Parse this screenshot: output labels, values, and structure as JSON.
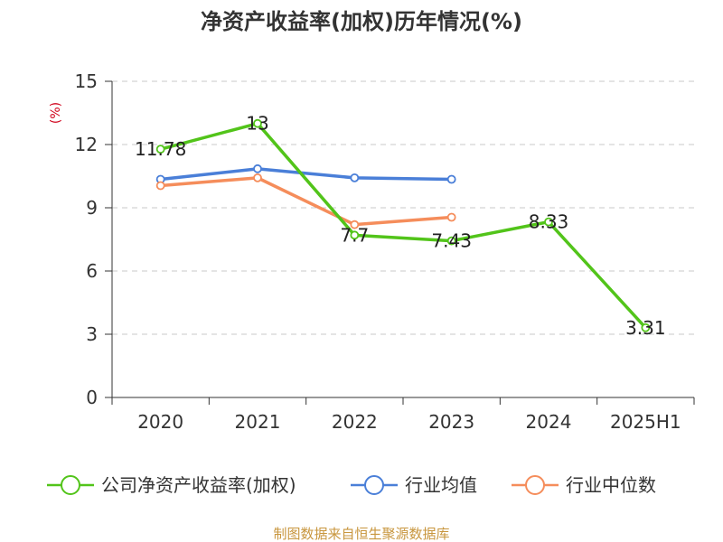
{
  "chart_data": {
    "type": "line",
    "title": "净资产收益率(加权)历年情况(%)",
    "ylabel": "(%)",
    "xlabel": "",
    "categories": [
      "2020",
      "2021",
      "2022",
      "2023",
      "2024",
      "2025H1"
    ],
    "ylim": [
      0,
      15
    ],
    "yticks": [
      0,
      3,
      6,
      9,
      12,
      15
    ],
    "grid": true,
    "legend_position": "bottom",
    "series": [
      {
        "name": "公司净资产收益率(加权)",
        "color": "#52c41a",
        "values": [
          11.78,
          13,
          7.7,
          7.43,
          8.33,
          3.31
        ],
        "labels": [
          "11.78",
          "13",
          "7.7",
          "7.43",
          "8.33",
          "3.31"
        ]
      },
      {
        "name": "行业均值",
        "color": "#4a7fd8",
        "values": [
          10.35,
          10.85,
          10.42,
          10.35,
          null,
          null
        ]
      },
      {
        "name": "行业中位数",
        "color": "#f58d5b",
        "values": [
          10.05,
          10.42,
          8.2,
          8.55,
          null,
          null
        ]
      }
    ]
  },
  "footer": {
    "source": "制图数据来自恒生聚源数据库"
  }
}
